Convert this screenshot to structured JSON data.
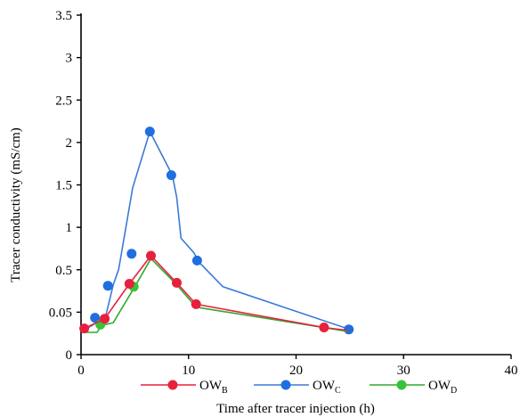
{
  "chart_data": {
    "type": "line",
    "title": "",
    "xlabel": "Time after tracer injection (h)",
    "ylabel": "Tracer conductivity (mS/cm)",
    "xlim": [
      0,
      40
    ],
    "ylim": [
      0,
      3.5
    ],
    "x_ticks": [
      0,
      10,
      20,
      30,
      40
    ],
    "x_tick_labels": [
      "0",
      "10",
      "20",
      "30",
      "40"
    ],
    "y_tick_labels": [
      "0",
      "0.05",
      "0.5",
      "1",
      "1.5",
      "2",
      "2.5",
      "3",
      "3.5"
    ],
    "grid": false,
    "legend_position": "bottom",
    "series": [
      {
        "name": "OW",
        "name_sub": "B",
        "color": "#e8203c",
        "marker_color": "#e8203c",
        "line": [
          [
            0.3,
            0.27
          ],
          [
            2.2,
            0.37
          ],
          [
            4.5,
            0.73
          ],
          [
            6.5,
            1.02
          ],
          [
            8.9,
            0.74
          ],
          [
            10.7,
            0.52
          ],
          [
            22.6,
            0.28
          ],
          [
            24.8,
            0.25
          ]
        ],
        "markers": [
          [
            0.3,
            0.27
          ],
          [
            2.2,
            0.37
          ],
          [
            4.5,
            0.73
          ],
          [
            6.5,
            1.02
          ],
          [
            8.9,
            0.74
          ],
          [
            10.7,
            0.52
          ],
          [
            22.6,
            0.28
          ]
        ]
      },
      {
        "name": "OW",
        "name_sub": "C",
        "color": "#3a7bd5",
        "marker_color": "#1f6fe0",
        "line": [
          [
            0.4,
            0.26
          ],
          [
            1.3,
            0.32
          ],
          [
            2.3,
            0.4
          ],
          [
            3.0,
            0.72
          ],
          [
            3.5,
            0.88
          ],
          [
            4.8,
            1.72
          ],
          [
            6.4,
            2.3
          ],
          [
            8.5,
            1.85
          ],
          [
            8.9,
            1.62
          ],
          [
            9.3,
            1.2
          ],
          [
            10.5,
            1.05
          ],
          [
            11.0,
            0.95
          ],
          [
            13.2,
            0.7
          ],
          [
            25.0,
            0.26
          ]
        ],
        "markers": [
          [
            1.3,
            0.38
          ],
          [
            2.5,
            0.71
          ],
          [
            4.7,
            1.04
          ],
          [
            6.4,
            2.3
          ],
          [
            8.4,
            1.85
          ],
          [
            10.8,
            0.97
          ],
          [
            24.9,
            0.26
          ]
        ]
      },
      {
        "name": "OW",
        "name_sub": "D",
        "color": "#2eaa2e",
        "marker_color": "#3ac23a",
        "line": [
          [
            0.3,
            0.23
          ],
          [
            1.5,
            0.23
          ],
          [
            1.9,
            0.3
          ],
          [
            3.0,
            0.33
          ],
          [
            5.0,
            0.7
          ],
          [
            6.5,
            0.99
          ],
          [
            8.9,
            0.72
          ],
          [
            10.7,
            0.49
          ],
          [
            24.8,
            0.24
          ]
        ],
        "markers": [
          [
            1.8,
            0.31
          ],
          [
            4.9,
            0.7
          ]
        ]
      }
    ]
  }
}
